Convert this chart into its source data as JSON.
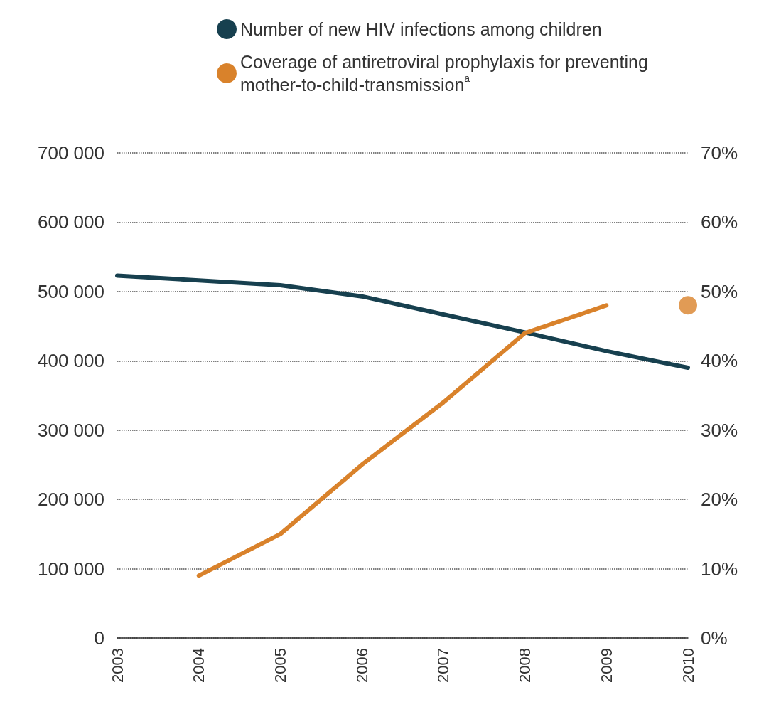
{
  "chart_data": {
    "type": "line",
    "categories": [
      "2003",
      "2004",
      "2005",
      "2006",
      "2007",
      "2008",
      "2009",
      "2010"
    ],
    "series": [
      {
        "name": "Number of new HIV infections among children",
        "color": "#17404f",
        "values": [
          523000,
          516000,
          509000,
          493000,
          467000,
          441000,
          414000,
          390000
        ]
      },
      {
        "name": "Coverage of antiretroviral prophylaxis for preventing mother-to-child-transmission$^{a}$",
        "color": "#d9822b",
        "axis": "y2",
        "values": [
          null,
          9,
          15,
          25,
          34,
          44,
          48,
          null
        ]
      },
      {
        "type": "scatter",
        "color": "#d9822b",
        "axis": "y2",
        "marker": "circle",
        "values": [
          null,
          null,
          null,
          null,
          null,
          null,
          null,
          48
        ]
      }
    ],
    "ylim": [
      0,
      700000
    ],
    "yticks": [
      0,
      {
        "value": 100000,
        "label": "100 000"
      },
      {
        "value": 200000,
        "label": "200 000"
      },
      {
        "value": 300000,
        "label": "300 000"
      },
      {
        "value": 400000,
        "label": "400 000"
      },
      {
        "value": 500000,
        "label": "500 000"
      },
      {
        "value": 600000,
        "label": "600 000"
      },
      {
        "value": 700000,
        "label": "700 000"
      }
    ],
    "y2lim": [
      0,
      70
    ],
    "y2ticks": [
      {
        "value": 0,
        "label": "0%"
      },
      {
        "value": 10,
        "label": "10%"
      },
      {
        "value": 20,
        "label": "20%"
      },
      {
        "value": 30,
        "label": "30%"
      },
      {
        "value": 40,
        "label": "40%"
      },
      {
        "value": 50,
        "label": "50%"
      },
      {
        "value": 60,
        "label": "60%"
      },
      {
        "value": 70,
        "label": "70%"
      }
    ],
    "grid": "y",
    "legend": "top",
    "marker": "none",
    "line_style": "solid"
  }
}
